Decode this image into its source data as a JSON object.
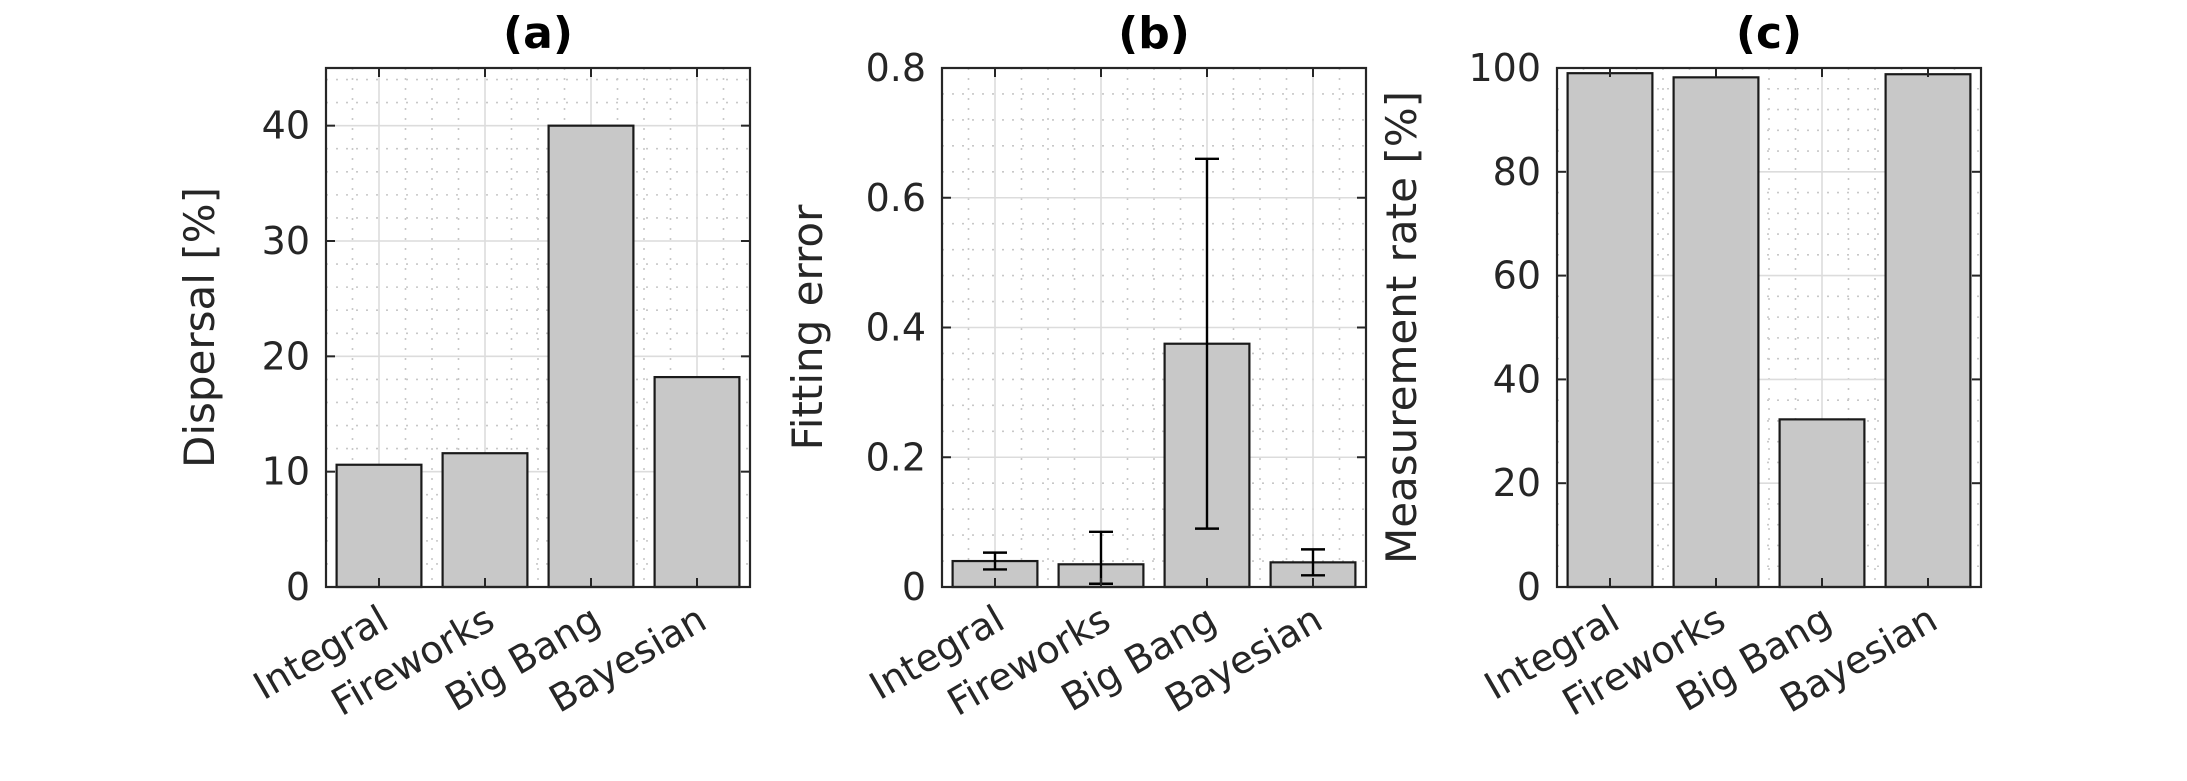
{
  "chart_data": [
    {
      "type": "bar",
      "title": "(a)",
      "categories": [
        "Integral",
        "Fireworks",
        "Big Bang",
        "Bayesian"
      ],
      "values": [
        10.6,
        11.6,
        40.0,
        18.2
      ],
      "ylabel": "Dispersal [%]",
      "xlabel": "",
      "ylim": [
        0,
        45
      ],
      "yticks": [
        0,
        10,
        20,
        30,
        40
      ],
      "grid": true,
      "minor_grid": true
    },
    {
      "type": "bar",
      "title": "(b)",
      "categories": [
        "Integral",
        "Fireworks",
        "Big Bang",
        "Bayesian"
      ],
      "values": [
        0.04,
        0.035,
        0.375,
        0.038
      ],
      "error_low": [
        0.027,
        0.005,
        0.09,
        0.018
      ],
      "error_high": [
        0.053,
        0.085,
        0.66,
        0.058
      ],
      "ylabel": "Fitting error",
      "xlabel": "",
      "ylim": [
        0,
        0.8
      ],
      "yticks": [
        "0",
        "0.2",
        "0.4",
        "0.6",
        "0.8"
      ],
      "grid": true,
      "minor_grid": true
    },
    {
      "type": "bar",
      "title": "(c)",
      "categories": [
        "Integral",
        "Fireworks",
        "Big Bang",
        "Bayesian"
      ],
      "values": [
        99.0,
        98.2,
        32.3,
        98.8
      ],
      "ylabel": "Measurement rate [%]",
      "xlabel": "",
      "ylim": [
        0,
        100
      ],
      "yticks": [
        0,
        20,
        40,
        60,
        80,
        100
      ],
      "grid": true,
      "minor_grid": true
    }
  ]
}
